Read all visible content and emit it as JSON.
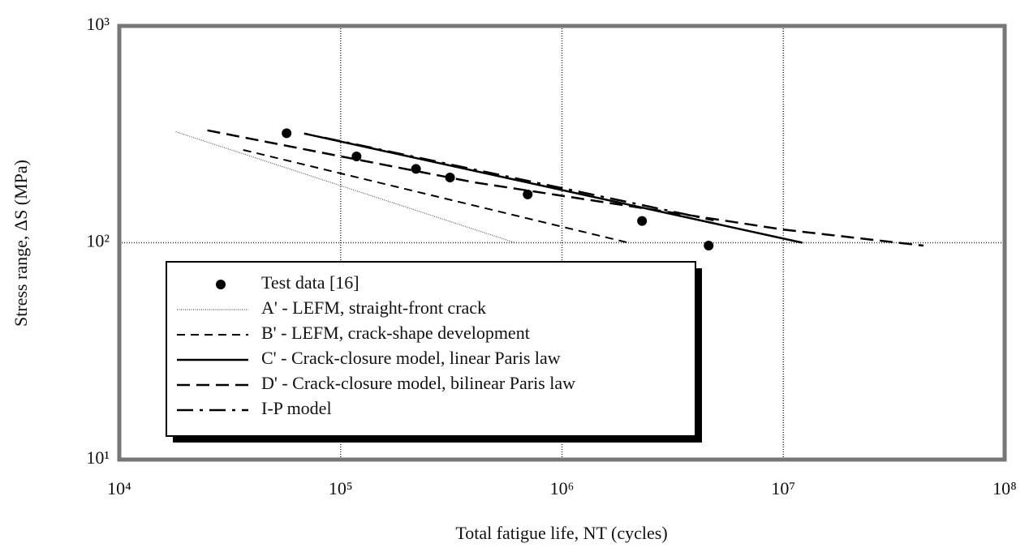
{
  "chart_data": {
    "type": "line",
    "xlabel": "Total fatigue life, NT (cycles)",
    "ylabel": "Stress range, ΔS (MPa)",
    "xlim": [
      10000,
      100000000
    ],
    "ylim": [
      10,
      1000
    ],
    "xscale": "log",
    "yscale": "log",
    "grid": true,
    "xticks": [
      {
        "value": 10000,
        "label": "10⁴"
      },
      {
        "value": 100000,
        "label": "10⁵"
      },
      {
        "value": 1000000,
        "label": "10⁶"
      },
      {
        "value": 10000000,
        "label": "10⁷"
      },
      {
        "value": 100000000,
        "label": "10⁸"
      }
    ],
    "yticks": [
      {
        "value": 10,
        "label": "10¹"
      },
      {
        "value": 100,
        "label": "10²"
      },
      {
        "value": 1000,
        "label": "10³"
      }
    ],
    "legend": "lower left",
    "series": [
      {
        "name": "Test data [16]",
        "type": "scatter",
        "color": "#000000",
        "x": [
          57000,
          118000,
          219000,
          312000,
          700000,
          2300000,
          4600000
        ],
        "values": [
          320,
          250,
          219,
          200,
          167,
          126,
          97
        ]
      },
      {
        "name": "A' - LEFM, straight-front crack",
        "type": "line",
        "dash": "dotted",
        "color": "#555555",
        "x": [
          18000,
          614000
        ],
        "values": [
          325,
          100
        ]
      },
      {
        "name": "B' - LEFM, crack-shape development",
        "type": "line",
        "dash": "dashed",
        "color": "#000000",
        "x": [
          36300,
          2000000
        ],
        "values": [
          268,
          100
        ]
      },
      {
        "name": "C' - Crack-closure model, linear Paris law",
        "type": "line",
        "dash": "solid",
        "color": "#000000",
        "x": [
          68400,
          12200000
        ],
        "values": [
          319,
          100
        ]
      },
      {
        "name": "D' - Crack-closure model, bilinear Paris law",
        "type": "line",
        "dash": "longdash",
        "color": "#000000",
        "x": [
          25000,
          400000,
          10000000,
          43000000
        ],
        "values": [
          330,
          190,
          115,
          97
        ]
      },
      {
        "name": "I-P model",
        "type": "line",
        "dash": "dashdot",
        "color": "#000000",
        "x": [
          84500,
          4840000
        ],
        "values": [
          305,
          127
        ]
      }
    ]
  }
}
